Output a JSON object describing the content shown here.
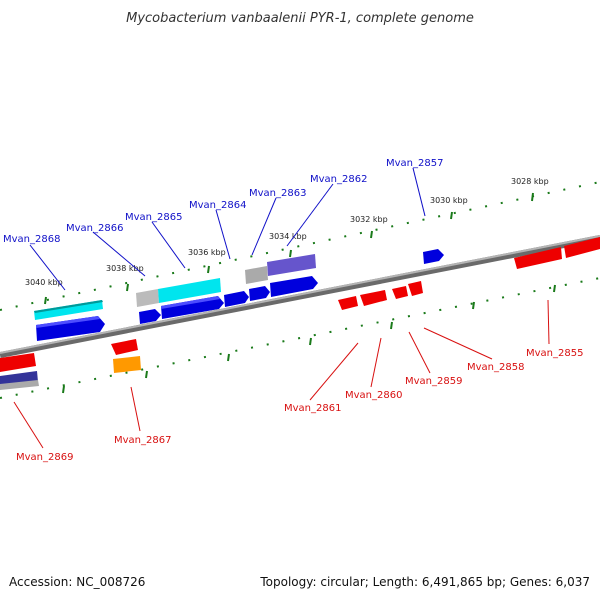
{
  "title": "Mycobacterium vanbaalenii PYR-1, complete genome",
  "footer": {
    "accession": "Accession: NC_008726",
    "summary": "Topology: circular; Length: 6,491,865 bp; Genes: 6,037"
  },
  "scale_labels": [
    "3028 kbp",
    "3030 kbp",
    "3032 kbp",
    "3034 kbp",
    "3036 kbp",
    "3038 kbp",
    "3040 kbp"
  ],
  "forward_genes": [
    "Mvan_2857",
    "Mvan_2862",
    "Mvan_2863",
    "Mvan_2864",
    "Mvan_2865",
    "Mvan_2866",
    "Mvan_2868"
  ],
  "reverse_genes": [
    "Mvan_2855",
    "Mvan_2858",
    "Mvan_2859",
    "Mvan_2860",
    "Mvan_2861",
    "Mvan_2867",
    "Mvan_2869"
  ],
  "colors": {
    "forward_gene": "#0000dd",
    "reverse_gene": "#ee0000",
    "cog_cyan": "#00e5ee",
    "cog_purple": "#6655cc",
    "cog_orange": "#ff9900",
    "cog_navy": "#333399",
    "tick": "#1a7a1a",
    "backbone": "#888888",
    "forward_label": "#1010c8",
    "reverse_label": "#d81010"
  }
}
